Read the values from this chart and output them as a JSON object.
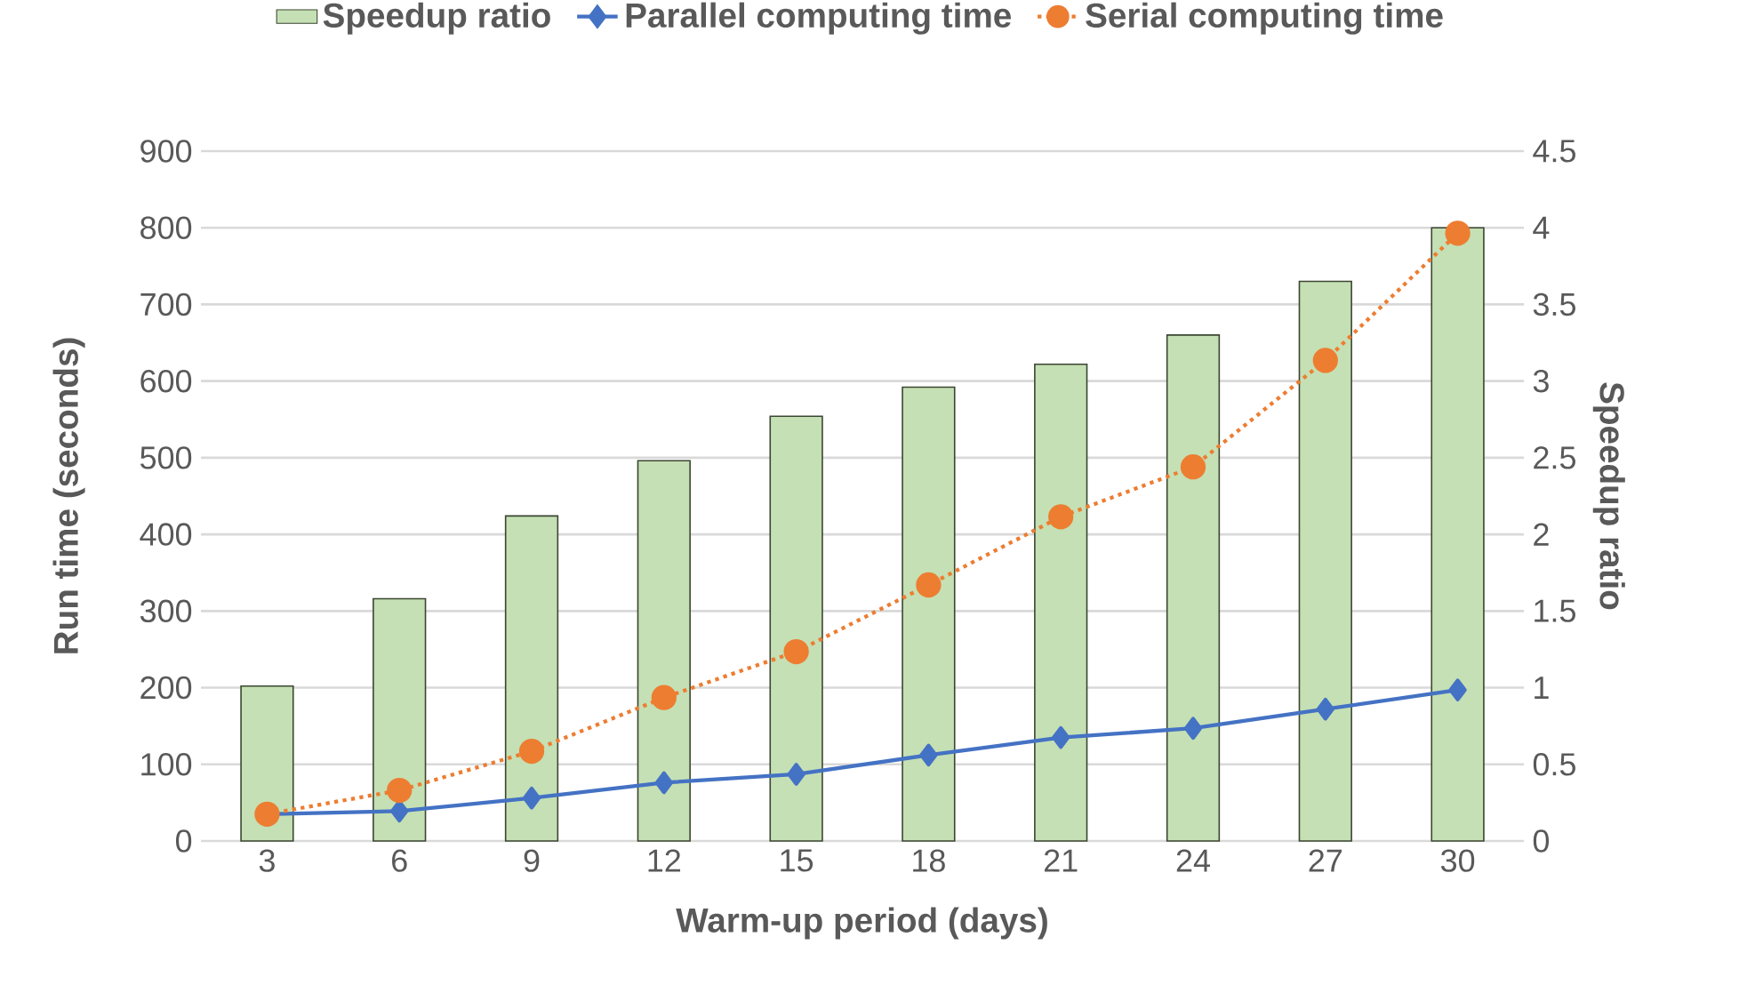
{
  "chart_data": {
    "type": "bar",
    "categories": [
      "3",
      "6",
      "9",
      "12",
      "15",
      "18",
      "21",
      "24",
      "27",
      "30"
    ],
    "xlabel": "Warm-up period (days)",
    "ylabel": "Run time (seconds)",
    "y2label": "Speedup ratio",
    "ylim": [
      0,
      900
    ],
    "yticks": [
      0,
      100,
      200,
      300,
      400,
      500,
      600,
      700,
      800,
      900
    ],
    "y2lim": [
      0,
      4.5
    ],
    "y2ticks": [
      0,
      0.5,
      1,
      1.5,
      2,
      2.5,
      3,
      3.5,
      4,
      4.5
    ],
    "grid": "y",
    "legend": "top",
    "series": [
      {
        "name": "Speedup ratio",
        "axis": "y2",
        "color": "#c5e0b4",
        "values": [
          1.01,
          1.58,
          2.12,
          2.48,
          2.77,
          2.96,
          3.11,
          3.3,
          3.65,
          4.0
        ]
      },
      {
        "name": "Parallel computing time",
        "type": "line",
        "color": "#4472c4",
        "marker": "diamond",
        "line_style": "solid",
        "values": [
          35,
          39,
          56,
          76,
          87,
          112,
          135,
          147,
          172,
          197
        ]
      },
      {
        "name": "Serial computing time",
        "type": "line",
        "color": "#ed7d31",
        "marker": "circle",
        "line_style": "dotted",
        "values": [
          35,
          66,
          117,
          187,
          247,
          334,
          423,
          488,
          627,
          793
        ]
      }
    ]
  }
}
